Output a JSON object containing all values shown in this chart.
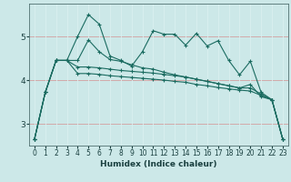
{
  "background_color": "#cce8e8",
  "grid_color_white": "#e8f8f8",
  "grid_color_pink": "#e8c8c8",
  "line_color": "#1a6b60",
  "xlabel": "Humidex (Indice chaleur)",
  "yticks": [
    3,
    4,
    5
  ],
  "xticks": [
    0,
    1,
    2,
    3,
    4,
    5,
    6,
    7,
    8,
    9,
    10,
    11,
    12,
    13,
    14,
    15,
    16,
    17,
    18,
    19,
    20,
    21,
    22,
    23
  ],
  "xlim": [
    -0.5,
    23.5
  ],
  "ylim": [
    2.5,
    5.75
  ],
  "series": [
    [
      2.65,
      3.72,
      4.45,
      4.45,
      5.0,
      5.5,
      5.28,
      4.55,
      4.45,
      4.32,
      4.65,
      5.13,
      5.05,
      5.05,
      4.8,
      5.07,
      4.78,
      4.9,
      4.45,
      4.12,
      4.43,
      3.72,
      3.55,
      2.65
    ],
    [
      2.65,
      3.72,
      4.45,
      4.45,
      4.45,
      4.92,
      4.65,
      4.47,
      4.43,
      4.35,
      4.28,
      4.25,
      4.18,
      4.12,
      4.07,
      4.02,
      3.97,
      3.92,
      3.87,
      3.82,
      3.9,
      3.62,
      3.55,
      2.65
    ],
    [
      2.65,
      3.72,
      4.45,
      4.45,
      4.3,
      4.3,
      4.28,
      4.25,
      4.22,
      4.2,
      4.18,
      4.16,
      4.13,
      4.1,
      4.07,
      4.02,
      3.97,
      3.92,
      3.87,
      3.82,
      3.82,
      3.68,
      3.55,
      2.65
    ],
    [
      2.65,
      3.72,
      4.45,
      4.45,
      4.15,
      4.15,
      4.13,
      4.1,
      4.08,
      4.06,
      4.04,
      4.02,
      4.0,
      3.97,
      3.95,
      3.9,
      3.87,
      3.83,
      3.8,
      3.77,
      3.75,
      3.65,
      3.55,
      2.65
    ]
  ]
}
